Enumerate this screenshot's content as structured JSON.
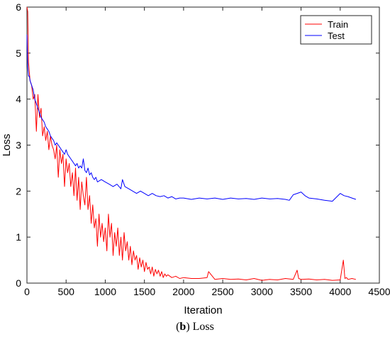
{
  "caption": {
    "letter": "b",
    "text": "Loss"
  },
  "chart_data": {
    "type": "line",
    "title": "",
    "xlabel": "Iteration",
    "ylabel": "Loss",
    "xlim": [
      0,
      4500
    ],
    "ylim": [
      0,
      6
    ],
    "xticks": [
      0,
      500,
      1000,
      1500,
      2000,
      2500,
      3000,
      3500,
      4000,
      4500
    ],
    "yticks": [
      0,
      1,
      2,
      3,
      4,
      5,
      6
    ],
    "grid": false,
    "legend_position": "top-right",
    "series": [
      {
        "name": "Train",
        "color": "#ff0000",
        "x": [
          0,
          10,
          20,
          30,
          40,
          60,
          80,
          100,
          120,
          140,
          160,
          180,
          200,
          220,
          240,
          260,
          280,
          300,
          320,
          340,
          360,
          380,
          400,
          420,
          440,
          460,
          480,
          500,
          520,
          540,
          560,
          580,
          600,
          620,
          640,
          660,
          680,
          700,
          720,
          740,
          760,
          780,
          800,
          820,
          840,
          860,
          880,
          900,
          920,
          940,
          960,
          980,
          1000,
          1020,
          1040,
          1060,
          1080,
          1100,
          1120,
          1140,
          1160,
          1180,
          1200,
          1220,
          1240,
          1260,
          1280,
          1300,
          1320,
          1340,
          1360,
          1380,
          1400,
          1420,
          1440,
          1460,
          1480,
          1500,
          1520,
          1540,
          1560,
          1580,
          1600,
          1620,
          1640,
          1660,
          1680,
          1700,
          1720,
          1740,
          1760,
          1780,
          1800,
          1850,
          1900,
          1950,
          2000,
          2100,
          2200,
          2300,
          2320,
          2400,
          2500,
          2600,
          2700,
          2800,
          2900,
          3000,
          3100,
          3200,
          3300,
          3400,
          3450,
          3470,
          3500,
          3600,
          3700,
          3800,
          3900,
          4000,
          4040,
          4060,
          4080,
          4100,
          4150,
          4200
        ],
        "y": [
          6.0,
          5.9,
          4.8,
          4.6,
          4.4,
          4.3,
          4.0,
          4.1,
          3.3,
          4.1,
          3.6,
          3.8,
          3.2,
          3.4,
          3.1,
          3.3,
          2.9,
          3.2,
          3.0,
          2.9,
          2.7,
          3.0,
          2.3,
          2.9,
          2.6,
          2.8,
          2.1,
          2.7,
          2.4,
          2.6,
          2.1,
          2.4,
          1.9,
          2.5,
          1.8,
          2.3,
          1.6,
          2.2,
          1.9,
          1.7,
          2.3,
          1.6,
          1.9,
          1.3,
          1.7,
          1.2,
          1.4,
          0.8,
          1.5,
          1.0,
          1.3,
          0.9,
          1.2,
          0.7,
          1.5,
          1.0,
          1.3,
          0.6,
          1.1,
          0.8,
          1.2,
          0.6,
          1.0,
          0.5,
          1.1,
          0.7,
          0.9,
          0.5,
          0.8,
          0.4,
          0.7,
          0.5,
          0.6,
          0.3,
          0.55,
          0.35,
          0.5,
          0.25,
          0.45,
          0.3,
          0.35,
          0.2,
          0.35,
          0.15,
          0.3,
          0.2,
          0.28,
          0.15,
          0.25,
          0.12,
          0.2,
          0.15,
          0.18,
          0.12,
          0.15,
          0.1,
          0.12,
          0.1,
          0.1,
          0.12,
          0.25,
          0.08,
          0.1,
          0.08,
          0.09,
          0.07,
          0.1,
          0.06,
          0.08,
          0.07,
          0.1,
          0.08,
          0.28,
          0.1,
          0.08,
          0.09,
          0.07,
          0.08,
          0.06,
          0.07,
          0.5,
          0.1,
          0.12,
          0.08,
          0.1,
          0.08
        ]
      },
      {
        "name": "Test",
        "color": "#0000ff",
        "x": [
          0,
          10,
          20,
          30,
          40,
          60,
          80,
          100,
          120,
          140,
          160,
          180,
          200,
          220,
          240,
          260,
          280,
          300,
          320,
          340,
          360,
          380,
          400,
          420,
          440,
          460,
          480,
          500,
          520,
          540,
          560,
          580,
          600,
          620,
          640,
          660,
          680,
          700,
          720,
          740,
          760,
          780,
          800,
          820,
          840,
          860,
          880,
          900,
          950,
          1000,
          1050,
          1100,
          1150,
          1200,
          1220,
          1250,
          1300,
          1350,
          1400,
          1450,
          1500,
          1550,
          1600,
          1650,
          1700,
          1750,
          1800,
          1850,
          1900,
          1950,
          2000,
          2100,
          2200,
          2300,
          2400,
          2500,
          2600,
          2700,
          2800,
          2900,
          3000,
          3100,
          3200,
          3300,
          3350,
          3400,
          3450,
          3500,
          3550,
          3600,
          3700,
          3800,
          3900,
          4000,
          4050,
          4100,
          4150,
          4200
        ],
        "y": [
          5.4,
          4.7,
          4.5,
          4.5,
          4.4,
          4.3,
          4.2,
          4.0,
          3.9,
          3.8,
          3.7,
          3.6,
          3.55,
          3.5,
          3.4,
          3.35,
          3.3,
          3.2,
          3.15,
          3.1,
          3.0,
          3.05,
          3.0,
          2.95,
          2.9,
          2.85,
          2.8,
          2.9,
          2.8,
          2.75,
          2.7,
          2.65,
          2.6,
          2.55,
          2.6,
          2.5,
          2.55,
          2.5,
          2.7,
          2.45,
          2.4,
          2.5,
          2.35,
          2.4,
          2.3,
          2.25,
          2.3,
          2.2,
          2.25,
          2.2,
          2.15,
          2.1,
          2.15,
          2.05,
          2.25,
          2.1,
          2.05,
          2.0,
          1.95,
          2.0,
          1.95,
          1.9,
          1.95,
          1.9,
          1.88,
          1.9,
          1.85,
          1.88,
          1.83,
          1.85,
          1.85,
          1.82,
          1.85,
          1.83,
          1.85,
          1.82,
          1.85,
          1.83,
          1.84,
          1.82,
          1.85,
          1.83,
          1.84,
          1.82,
          1.8,
          1.92,
          1.95,
          1.98,
          1.9,
          1.85,
          1.83,
          1.8,
          1.78,
          1.95,
          1.9,
          1.88,
          1.85,
          1.82
        ]
      }
    ]
  }
}
